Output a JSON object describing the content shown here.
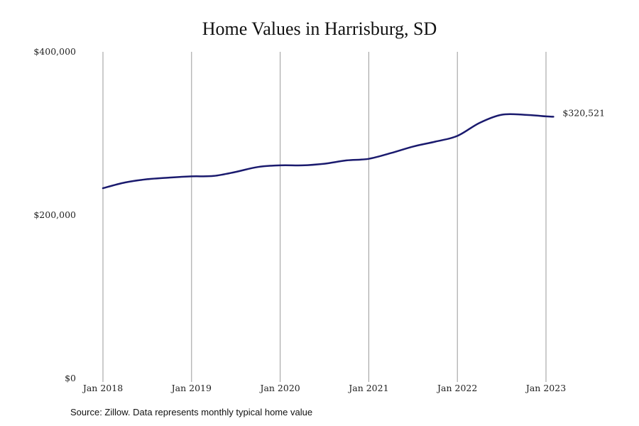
{
  "source_note": "Source: Zillow. Data represents monthly typical home value",
  "colors": {
    "line": "#1a1a6e",
    "grid": "#9a9a9a"
  },
  "chart_data": {
    "type": "line",
    "title": "Home Values in Harrisburg, SD",
    "xlabel": "",
    "ylabel": "",
    "ylim": [
      0,
      400000
    ],
    "y_ticks": [
      0,
      200000,
      400000
    ],
    "y_tick_labels": [
      "$0",
      "$200,000",
      "$400,000"
    ],
    "x_ticks": [
      "2018-01",
      "2019-01",
      "2020-01",
      "2021-01",
      "2022-01",
      "2023-01"
    ],
    "x_tick_labels": [
      "Jan 2018",
      "Jan 2019",
      "Jan 2020",
      "Jan 2021",
      "Jan 2022",
      "Jan 2023"
    ],
    "grid": "vertical",
    "end_label": "$320,521",
    "series": [
      {
        "x": [
          "2018-01",
          "2018-04",
          "2018-07",
          "2018-10",
          "2019-01",
          "2019-04",
          "2019-07",
          "2019-10",
          "2020-01",
          "2020-04",
          "2020-07",
          "2020-10",
          "2021-01",
          "2021-04",
          "2021-07",
          "2021-10",
          "2022-01",
          "2022-04",
          "2022-07",
          "2022-10",
          "2023-01",
          "2023-02"
        ],
        "values": [
          233000,
          240000,
          244000,
          246000,
          247500,
          248000,
          253000,
          259000,
          261000,
          261000,
          263000,
          267000,
          269000,
          276000,
          284000,
          290000,
          297000,
          313000,
          323000,
          323000,
          321000,
          320521
        ]
      }
    ]
  }
}
